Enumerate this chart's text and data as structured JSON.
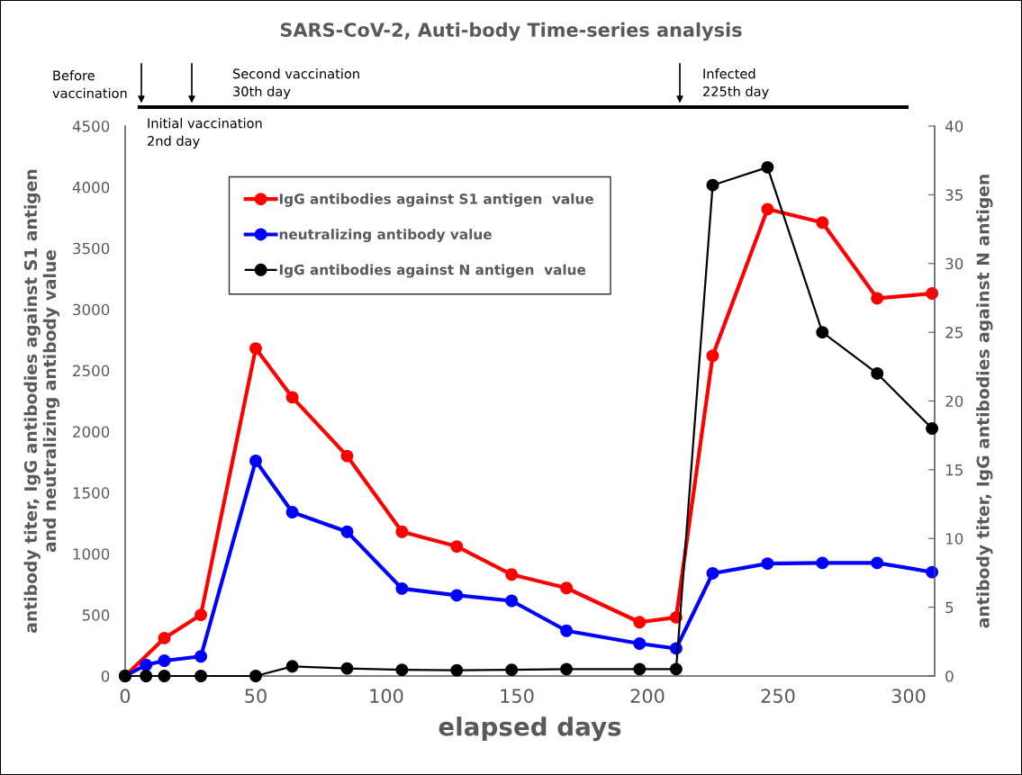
{
  "chart_data": {
    "type": "line",
    "title": "SARS-CoV-2, Auti-body Time-series analysis",
    "xlabel": "elapsed days",
    "ylabel": "antibody titer, IgG antibodies against S1 antigen\nand neutralizing antibody value",
    "y2label": "antibody titer, IgG antibodies against N antigen",
    "xlim": [
      0,
      310
    ],
    "xticks": [
      0,
      50,
      100,
      150,
      200,
      250,
      300
    ],
    "ylim": [
      0,
      4500
    ],
    "yticks": [
      0,
      500,
      1000,
      1500,
      2000,
      2500,
      3000,
      3500,
      4000,
      4500
    ],
    "y2lim": [
      0,
      40
    ],
    "y2ticks": [
      0,
      5,
      10,
      15,
      20,
      25,
      30,
      35,
      40
    ],
    "series": [
      {
        "name": "IgG antibodies against S1 antigen  value",
        "color": "#ff0000",
        "x": [
          0,
          15,
          29,
          50,
          64,
          85,
          106,
          127,
          148,
          169,
          197,
          211,
          225,
          246,
          267,
          288,
          309
        ],
        "values": [
          0,
          310,
          500,
          2680,
          2280,
          1800,
          1180,
          1060,
          830,
          720,
          440,
          480,
          2620,
          3820,
          3710,
          3090,
          3130
        ]
      },
      {
        "name": "neutralizing antibody value",
        "color": "#0000ff",
        "x": [
          0,
          8,
          15,
          29,
          50,
          64,
          85,
          106,
          127,
          148,
          169,
          197,
          211,
          225,
          246,
          267,
          288,
          309
        ],
        "values": [
          0,
          90,
          125,
          160,
          1760,
          1340,
          1180,
          715,
          660,
          615,
          370,
          265,
          225,
          840,
          920,
          925,
          925,
          850
        ]
      },
      {
        "name": "IgG antibodies against N antigen  value",
        "color": "#000000",
        "axis": "y2",
        "x": [
          0,
          8,
          15,
          29,
          50,
          64,
          85,
          106,
          127,
          148,
          169,
          197,
          211,
          225,
          246,
          267,
          288,
          309
        ],
        "values": [
          0,
          0,
          0,
          0,
          0,
          0.7,
          0.55,
          0.45,
          0.42,
          0.45,
          0.5,
          0.5,
          0.5,
          35.7,
          37,
          25,
          22,
          18
        ]
      }
    ],
    "annotations": [
      "Before\nvaccination",
      "Initial vaccination\n2nd day",
      "Second vaccination\n30th day",
      "Infected\n225th day"
    ],
    "marker": "circle",
    "line_style": "solid",
    "grid": false,
    "legend": "top left"
  }
}
